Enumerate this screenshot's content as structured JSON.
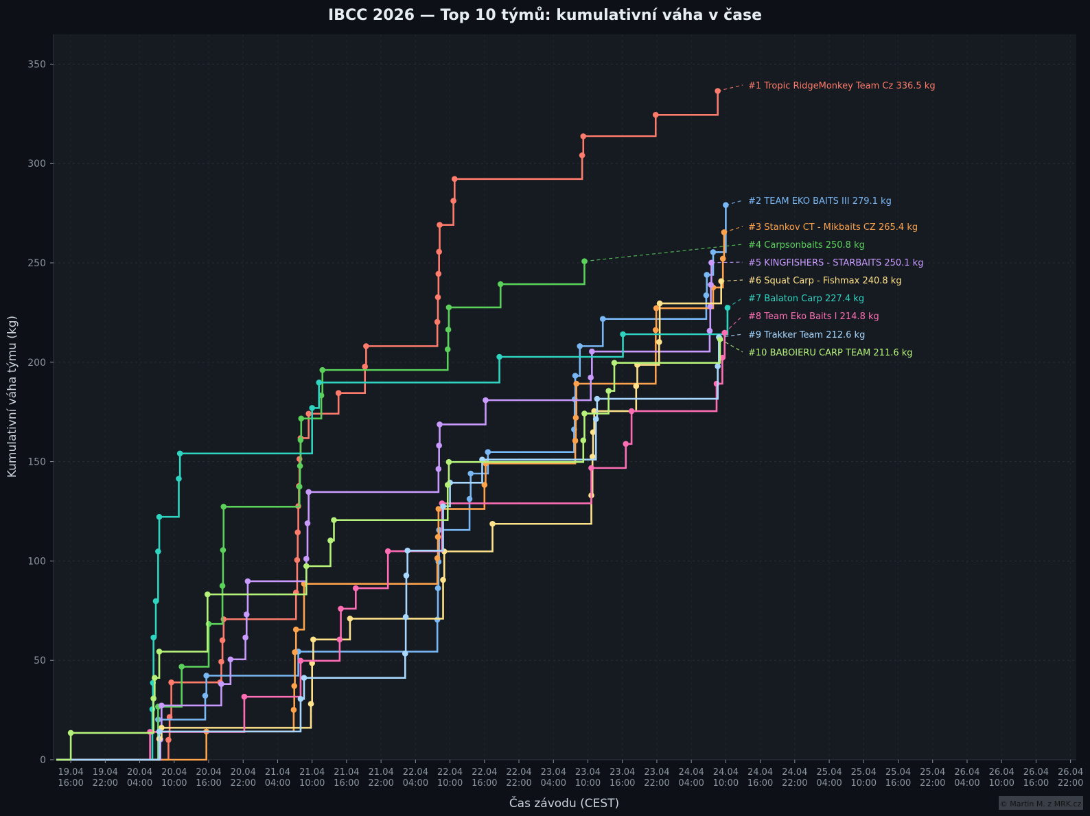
{
  "chart_data": {
    "type": "line",
    "title": "IBCC 2026 — Top 10 týmů: kumulativní váha v čase",
    "xlabel": "Čas závodu (CEST)",
    "ylabel": "Kumulativní váha týmu (kg)",
    "ylim": [
      0,
      365
    ],
    "yticks": [
      0,
      50,
      100,
      150,
      200,
      250,
      300,
      350
    ],
    "xlim": [
      "2026-04-19T13:00",
      "2026-04-26T23:00"
    ],
    "xticks": [
      {
        "t": "2026-04-19T16:00",
        "d": "19.04",
        "h": "16:00"
      },
      {
        "t": "2026-04-19T22:00",
        "d": "19.04",
        "h": "22:00"
      },
      {
        "t": "2026-04-20T04:00",
        "d": "20.04",
        "h": "04:00"
      },
      {
        "t": "2026-04-20T10:00",
        "d": "20.04",
        "h": "10:00"
      },
      {
        "t": "2026-04-20T16:00",
        "d": "20.04",
        "h": "16:00"
      },
      {
        "t": "2026-04-20T22:00",
        "d": "20.04",
        "h": "22:00"
      },
      {
        "t": "2026-04-21T04:00",
        "d": "21.04",
        "h": "04:00"
      },
      {
        "t": "2026-04-21T10:00",
        "d": "21.04",
        "h": "10:00"
      },
      {
        "t": "2026-04-21T16:00",
        "d": "21.04",
        "h": "16:00"
      },
      {
        "t": "2026-04-21T22:00",
        "d": "21.04",
        "h": "22:00"
      },
      {
        "t": "2026-04-22T04:00",
        "d": "22.04",
        "h": "04:00"
      },
      {
        "t": "2026-04-22T10:00",
        "d": "22.04",
        "h": "10:00"
      },
      {
        "t": "2026-04-22T16:00",
        "d": "22.04",
        "h": "16:00"
      },
      {
        "t": "2026-04-22T22:00",
        "d": "22.04",
        "h": "22:00"
      },
      {
        "t": "2026-04-23T04:00",
        "d": "23.04",
        "h": "04:00"
      },
      {
        "t": "2026-04-23T10:00",
        "d": "23.04",
        "h": "10:00"
      },
      {
        "t": "2026-04-23T16:00",
        "d": "23.04",
        "h": "16:00"
      },
      {
        "t": "2026-04-23T22:00",
        "d": "23.04",
        "h": "22:00"
      },
      {
        "t": "2026-04-24T04:00",
        "d": "24.04",
        "h": "04:00"
      },
      {
        "t": "2026-04-24T10:00",
        "d": "24.04",
        "h": "10:00"
      },
      {
        "t": "2026-04-24T16:00",
        "d": "24.04",
        "h": "16:00"
      },
      {
        "t": "2026-04-24T22:00",
        "d": "24.04",
        "h": "22:00"
      },
      {
        "t": "2026-04-25T04:00",
        "d": "25.04",
        "h": "04:00"
      },
      {
        "t": "2026-04-25T10:00",
        "d": "25.04",
        "h": "10:00"
      },
      {
        "t": "2026-04-25T16:00",
        "d": "25.04",
        "h": "16:00"
      },
      {
        "t": "2026-04-25T22:00",
        "d": "25.04",
        "h": "22:00"
      },
      {
        "t": "2026-04-26T04:00",
        "d": "26.04",
        "h": "04:00"
      },
      {
        "t": "2026-04-26T10:00",
        "d": "26.04",
        "h": "10:00"
      },
      {
        "t": "2026-04-26T16:00",
        "d": "26.04",
        "h": "16:00"
      },
      {
        "t": "2026-04-26T22:00",
        "d": "26.04",
        "h": "22:00"
      }
    ],
    "grid": true,
    "step": "post",
    "series": [
      {
        "rank": 1,
        "name": "Tropic RidgeMonkey Team Cz",
        "total": 336.5,
        "label": "#1  Tropic RidgeMonkey Team Cz  336.5 kg",
        "color": "#ff7b6b",
        "points": [
          [
            "2026-04-20T09:00",
            10
          ],
          [
            "2026-04-20T09:12",
            21.5
          ],
          [
            "2026-04-20T09:30",
            38.9
          ],
          [
            "2026-04-20T18:00",
            38.9
          ],
          [
            "2026-04-20T18:12",
            49.3
          ],
          [
            "2026-04-20T18:24",
            60.1
          ],
          [
            "2026-04-20T18:36",
            70.7
          ],
          [
            "2026-04-21T07:12",
            84.1
          ],
          [
            "2026-04-21T07:24",
            100.5
          ],
          [
            "2026-04-21T07:30",
            114.4
          ],
          [
            "2026-04-21T07:36",
            127.6
          ],
          [
            "2026-04-21T07:42",
            137.7
          ],
          [
            "2026-04-21T07:48",
            151.3
          ],
          [
            "2026-04-21T08:00",
            161.8
          ],
          [
            "2026-04-21T09:24",
            174.1
          ],
          [
            "2026-04-21T14:36",
            184.5
          ],
          [
            "2026-04-21T19:12",
            197.8
          ],
          [
            "2026-04-21T19:24",
            208.1
          ],
          [
            "2026-04-22T07:48",
            220.3
          ],
          [
            "2026-04-22T07:54",
            232.7
          ],
          [
            "2026-04-22T08:00",
            244.5
          ],
          [
            "2026-04-22T08:06",
            255.6
          ],
          [
            "2026-04-22T08:12",
            269.1
          ],
          [
            "2026-04-22T10:36",
            281.2
          ],
          [
            "2026-04-22T10:48",
            292.2
          ],
          [
            "2026-04-23T09:00",
            304.1
          ],
          [
            "2026-04-23T09:12",
            313.7
          ],
          [
            "2026-04-23T21:48",
            324.5
          ],
          [
            "2026-04-24T08:36",
            336.5
          ]
        ]
      },
      {
        "rank": 2,
        "name": "TEAM EKO BAITS III",
        "total": 279.1,
        "label": "#2  TEAM EKO BAITS III  279.1 kg",
        "color": "#7ab8f5",
        "points": [
          [
            "2026-04-20T07:12",
            20.2
          ],
          [
            "2026-04-20T15:24",
            32.2
          ],
          [
            "2026-04-20T15:36",
            42.3
          ],
          [
            "2026-04-21T07:36",
            54.4
          ],
          [
            "2026-04-22T07:48",
            70.5
          ],
          [
            "2026-04-22T07:54",
            86.3
          ],
          [
            "2026-04-22T08:00",
            99.6
          ],
          [
            "2026-04-22T08:06",
            115.6
          ],
          [
            "2026-04-22T13:24",
            131.2
          ],
          [
            "2026-04-22T13:36",
            144
          ],
          [
            "2026-04-22T16:36",
            154.8
          ],
          [
            "2026-04-23T07:36",
            166.2
          ],
          [
            "2026-04-23T07:42",
            181.4
          ],
          [
            "2026-04-23T07:48",
            193.2
          ],
          [
            "2026-04-23T08:36",
            208.1
          ],
          [
            "2026-04-23T12:36",
            221.8
          ],
          [
            "2026-04-24T06:36",
            233.7
          ],
          [
            "2026-04-24T06:42",
            244
          ],
          [
            "2026-04-24T07:48",
            255.4
          ],
          [
            "2026-04-24T10:00",
            279.1
          ]
        ]
      },
      {
        "rank": 3,
        "name": "Stankov CT - Mikbaits CZ",
        "total": 265.4,
        "label": "#3  Stankov CT - Mikbaits CZ  265.4 kg",
        "color": "#ffa24c",
        "points": [
          [
            "2026-04-20T15:36",
            14.2
          ],
          [
            "2026-04-21T06:48",
            25.1
          ],
          [
            "2026-04-21T06:54",
            37.1
          ],
          [
            "2026-04-21T07:00",
            54.1
          ],
          [
            "2026-04-21T07:12",
            65.5
          ],
          [
            "2026-04-21T08:36",
            88.5
          ],
          [
            "2026-04-22T07:48",
            101.4
          ],
          [
            "2026-04-22T07:54",
            112.1
          ],
          [
            "2026-04-22T08:00",
            126.2
          ],
          [
            "2026-04-22T16:00",
            138.3
          ],
          [
            "2026-04-22T16:12",
            149.1
          ],
          [
            "2026-04-23T07:48",
            160.5
          ],
          [
            "2026-04-23T07:54",
            172.1
          ],
          [
            "2026-04-23T08:00",
            189.2
          ],
          [
            "2026-04-23T21:48",
            216.2
          ],
          [
            "2026-04-23T21:54",
            227.2
          ],
          [
            "2026-04-24T07:48",
            237.6
          ],
          [
            "2026-04-24T09:30",
            252.1
          ],
          [
            "2026-04-24T09:42",
            265.4
          ]
        ]
      },
      {
        "rank": 4,
        "name": "Carpsonbaits",
        "total": 250.8,
        "label": "#4  Carpsonbaits  250.8 kg",
        "color": "#5bd15b",
        "points": [
          [
            "2026-04-20T07:12",
            26.7
          ],
          [
            "2026-04-20T11:18",
            46.8
          ],
          [
            "2026-04-20T16:00",
            68.3
          ],
          [
            "2026-04-20T18:24",
            87.5
          ],
          [
            "2026-04-20T18:30",
            105.5
          ],
          [
            "2026-04-20T18:36",
            127.3
          ],
          [
            "2026-04-21T07:48",
            137.4
          ],
          [
            "2026-04-21T07:54",
            147.8
          ],
          [
            "2026-04-21T08:00",
            160.9
          ],
          [
            "2026-04-21T08:06",
            171.7
          ],
          [
            "2026-04-21T11:36",
            183.3
          ],
          [
            "2026-04-21T11:48",
            196.1
          ],
          [
            "2026-04-22T09:36",
            206.5
          ],
          [
            "2026-04-22T09:42",
            216.4
          ],
          [
            "2026-04-22T09:48",
            227.6
          ],
          [
            "2026-04-22T18:48",
            239.3
          ],
          [
            "2026-04-23T09:24",
            250.8
          ]
        ]
      },
      {
        "rank": 5,
        "name": "KINGFISHERS - STARBAITS",
        "total": 250.1,
        "label": "#5  KINGFISHERS - STARBAITS  250.1 kg",
        "color": "#c99bff",
        "points": [
          [
            "2026-04-20T07:36",
            10.2
          ],
          [
            "2026-04-20T07:48",
            27.3
          ],
          [
            "2026-04-20T18:12",
            38.1
          ],
          [
            "2026-04-20T19:48",
            50.5
          ],
          [
            "2026-04-20T22:24",
            61.5
          ],
          [
            "2026-04-20T22:36",
            73.1
          ],
          [
            "2026-04-20T22:48",
            89.8
          ],
          [
            "2026-04-21T09:00",
            101.1
          ],
          [
            "2026-04-21T09:12",
            119
          ],
          [
            "2026-04-21T09:24",
            134.7
          ],
          [
            "2026-04-22T08:00",
            146.3
          ],
          [
            "2026-04-22T08:06",
            158.1
          ],
          [
            "2026-04-22T08:12",
            168.7
          ],
          [
            "2026-04-22T16:12",
            180.9
          ],
          [
            "2026-04-23T10:30",
            192.3
          ],
          [
            "2026-04-23T10:42",
            205.4
          ],
          [
            "2026-04-24T07:12",
            215.8
          ],
          [
            "2026-04-24T07:18",
            228
          ],
          [
            "2026-04-24T07:24",
            239
          ],
          [
            "2026-04-24T07:30",
            250.1
          ]
        ]
      },
      {
        "rank": 6,
        "name": "Squat Carp - Fishmax",
        "total": 240.8,
        "label": "#6  Squat Carp - Fishmax  240.8 kg",
        "color": "#ffe28a",
        "points": [
          [
            "2026-04-20T07:24",
            10.5
          ],
          [
            "2026-04-20T07:48",
            16.1
          ],
          [
            "2026-04-21T09:48",
            28.1
          ],
          [
            "2026-04-21T10:00",
            48.6
          ],
          [
            "2026-04-21T10:12",
            60.5
          ],
          [
            "2026-04-21T16:36",
            71
          ],
          [
            "2026-04-22T08:48",
            90.5
          ],
          [
            "2026-04-22T09:00",
            104.8
          ],
          [
            "2026-04-22T17:24",
            118.7
          ],
          [
            "2026-04-23T10:36",
            133
          ],
          [
            "2026-04-23T10:48",
            152.5
          ],
          [
            "2026-04-23T10:54",
            164.8
          ],
          [
            "2026-04-23T11:06",
            175.4
          ],
          [
            "2026-04-23T18:24",
            188
          ],
          [
            "2026-04-23T18:36",
            198.7
          ],
          [
            "2026-04-23T22:24",
            210.2
          ],
          [
            "2026-04-23T22:30",
            229.6
          ],
          [
            "2026-04-24T09:12",
            240.8
          ]
        ]
      },
      {
        "rank": 7,
        "name": "Balaton Carp",
        "total": 227.4,
        "label": "#7  Balaton Carp  227.4 kg",
        "color": "#2fd4c0",
        "points": [
          [
            "2026-04-20T06:12",
            25.4
          ],
          [
            "2026-04-20T06:18",
            38.7
          ],
          [
            "2026-04-20T06:24",
            61.5
          ],
          [
            "2026-04-20T06:48",
            79.8
          ],
          [
            "2026-04-20T07:12",
            104.8
          ],
          [
            "2026-04-20T07:24",
            122.2
          ],
          [
            "2026-04-20T10:48",
            141.4
          ],
          [
            "2026-04-20T11:00",
            154.1
          ],
          [
            "2026-04-21T10:00",
            177
          ],
          [
            "2026-04-21T11:12",
            189.8
          ],
          [
            "2026-04-22T18:36",
            202.7
          ],
          [
            "2026-04-23T16:06",
            214.1
          ],
          [
            "2026-04-24T10:18",
            227.4
          ]
        ]
      },
      {
        "rank": 8,
        "name": "Team Eko Baits I",
        "total": 214.8,
        "label": "#8  Team Eko Baits I  214.8 kg",
        "color": "#ff6eb4",
        "points": [
          [
            "2026-04-20T05:48",
            14
          ],
          [
            "2026-04-20T22:12",
            31.7
          ],
          [
            "2026-04-21T08:00",
            49.8
          ],
          [
            "2026-04-21T14:48",
            60.5
          ],
          [
            "2026-04-21T15:00",
            76
          ],
          [
            "2026-04-21T17:36",
            86.3
          ],
          [
            "2026-04-21T23:12",
            104.9
          ],
          [
            "2026-04-22T08:36",
            129
          ],
          [
            "2026-04-23T10:36",
            146.8
          ],
          [
            "2026-04-23T16:36",
            158.9
          ],
          [
            "2026-04-23T17:36",
            175.4
          ],
          [
            "2026-04-24T08:24",
            189.2
          ],
          [
            "2026-04-24T09:24",
            202.3
          ],
          [
            "2026-04-24T09:48",
            214.8
          ]
        ]
      },
      {
        "rank": 9,
        "name": "Trakker Team",
        "total": 212.6,
        "label": "#9  Trakker Team  212.6 kg",
        "color": "#a8d8ff",
        "points": [
          [
            "2026-04-20T07:24",
            14.2
          ],
          [
            "2026-04-21T08:00",
            30.6
          ],
          [
            "2026-04-21T08:36",
            41.2
          ],
          [
            "2026-04-22T02:12",
            53.4
          ],
          [
            "2026-04-22T02:18",
            71.8
          ],
          [
            "2026-04-22T02:24",
            92.7
          ],
          [
            "2026-04-22T02:36",
            105.2
          ],
          [
            "2026-04-22T08:48",
            127.5
          ],
          [
            "2026-04-22T10:00",
            139.4
          ],
          [
            "2026-04-22T15:36",
            151
          ],
          [
            "2026-04-23T11:24",
            171.4
          ],
          [
            "2026-04-23T11:36",
            181.6
          ],
          [
            "2026-04-24T08:36",
            198
          ],
          [
            "2026-04-24T08:48",
            212.6
          ]
        ]
      },
      {
        "rank": 10,
        "name": "BABOIERU CARP TEAM",
        "total": 211.6,
        "label": "#10  BABOIERU CARP TEAM  211.6 kg",
        "color": "#b6f27a",
        "points": [
          [
            "2026-04-19T16:00",
            13.5
          ],
          [
            "2026-04-20T06:24",
            30.8
          ],
          [
            "2026-04-20T06:36",
            41.2
          ],
          [
            "2026-04-20T07:24",
            54.4
          ],
          [
            "2026-04-20T15:48",
            83.2
          ],
          [
            "2026-04-21T09:00",
            97.4
          ],
          [
            "2026-04-21T13:12",
            110.3
          ],
          [
            "2026-04-21T13:48",
            120.6
          ],
          [
            "2026-04-22T09:36",
            138.3
          ],
          [
            "2026-04-22T09:48",
            149.8
          ],
          [
            "2026-04-23T09:12",
            160.7
          ],
          [
            "2026-04-23T09:24",
            174.2
          ],
          [
            "2026-04-23T13:36",
            185.6
          ],
          [
            "2026-04-23T14:36",
            199.7
          ],
          [
            "2026-04-24T09:00",
            211.6
          ]
        ]
      }
    ]
  },
  "colors": {
    "background": "#0d1117",
    "plot_background": "#161b22",
    "grid": "#2a2f37",
    "text": "#e6edf3",
    "tick_text": "#8b949e"
  },
  "footer": {
    "credit": "© Martin M. z MRK.cz"
  }
}
